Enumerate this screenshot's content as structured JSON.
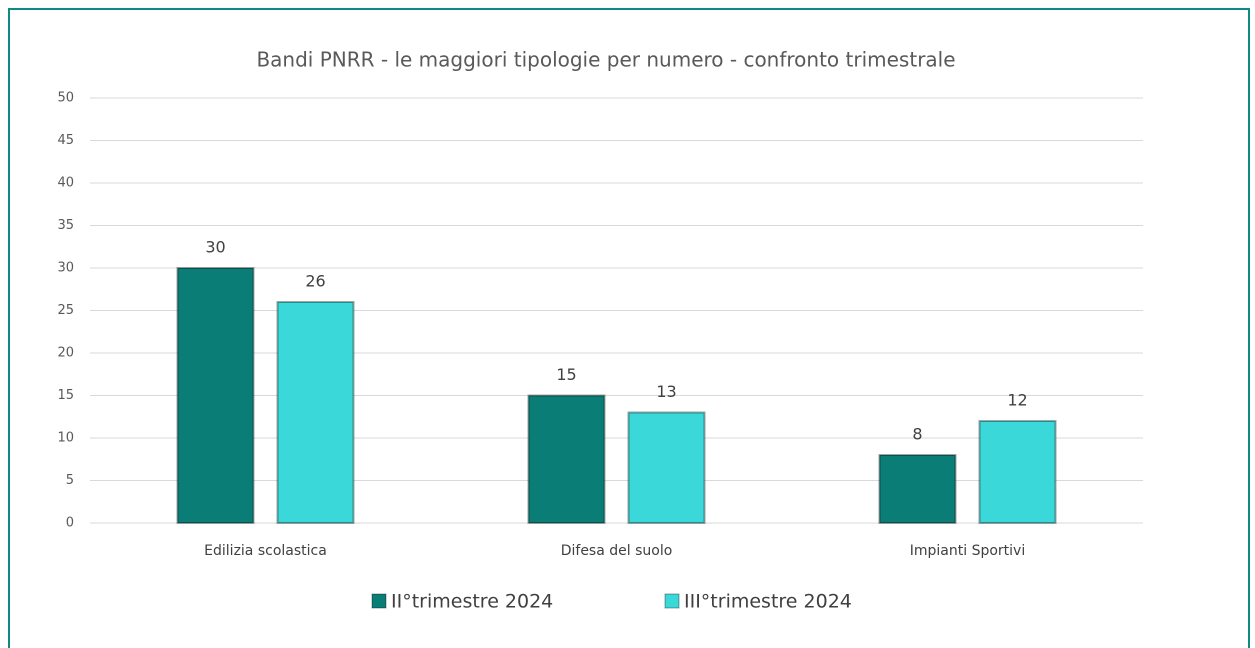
{
  "chart_data": {
    "type": "bar",
    "title": "Bandi PNRR - le maggiori tipologie per numero - confronto trimestrale",
    "categories": [
      "Edilizia scolastica",
      "Difesa del suolo",
      "Impianti Sportivi"
    ],
    "series": [
      {
        "name": "II°trimestre 2024",
        "color": "#0b7d77",
        "values": [
          30,
          15,
          8
        ]
      },
      {
        "name": "III°trimestre 2024",
        "color": "#3ad8d8",
        "values": [
          26,
          13,
          12
        ]
      }
    ],
    "ylim": [
      0,
      50
    ],
    "yticks": [
      0,
      5,
      10,
      15,
      20,
      25,
      30,
      35,
      40,
      45,
      50
    ],
    "grid": true,
    "legend": "bottom"
  }
}
